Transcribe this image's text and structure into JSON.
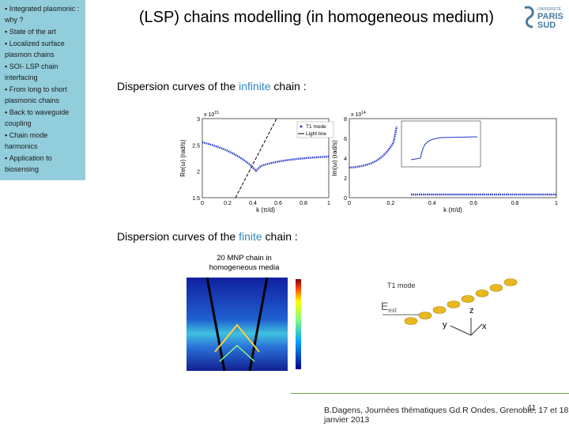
{
  "sidebar": {
    "items": [
      "Integrated plasmonic : why ?",
      "State of the art",
      "Localized surface plasmon chains",
      "SOI- LSP chain interfacing",
      "From long to short plasmonic chains",
      "Back to waveguide coupling",
      "Chain mode harmonics",
      "Application to biosensing"
    ]
  },
  "header": {
    "title": "(LSP) chains modelling (in homogeneous medium)"
  },
  "logo": {
    "line1": "UNIVERSITÉ",
    "line2": "PARIS",
    "line3": "SUD"
  },
  "sections": [
    {
      "prefix": "Dispersion curves of the ",
      "highlight": "infinite",
      "suffix": " chain :"
    },
    {
      "prefix": "Dispersion curves of the ",
      "highlight": "finite",
      "suffix": " chain :"
    }
  ],
  "figure1": {
    "left": {
      "scale": "x 10",
      "scale_exp": "15",
      "y_label": "Re(ω) (rad/s)",
      "x_label": "k (π/d)",
      "yticks": [
        "3",
        "2.5",
        "2",
        "1.5"
      ],
      "xticks": [
        "0",
        "0.2",
        "0.4",
        "0.6",
        "0.8",
        "1"
      ],
      "legend": [
        "T1 mode",
        "Light line"
      ]
    },
    "right": {
      "scale": "x 10",
      "scale_exp": "14",
      "y_label": "Im(ω) (rad/s)",
      "x_label": "k (π/d)",
      "yticks": [
        "8",
        "6",
        "4",
        "2",
        "0"
      ],
      "xticks": [
        "0",
        "0.2",
        "0.4",
        "0.6",
        "0.8",
        "1"
      ]
    }
  },
  "figure2": {
    "caption": "20 MNP chain in homogeneous media"
  },
  "diagram": {
    "mode": "T1 mode",
    "field": "E",
    "field_sub": "ext",
    "axis_z": "z",
    "axis_y": "y",
    "axis_x": "x"
  },
  "footer": {
    "citation": "B.Dagens, Journées thématiques Gd.R Ondes, Grenoble, 17 et 18 janvier 2013",
    "page": "11"
  }
}
